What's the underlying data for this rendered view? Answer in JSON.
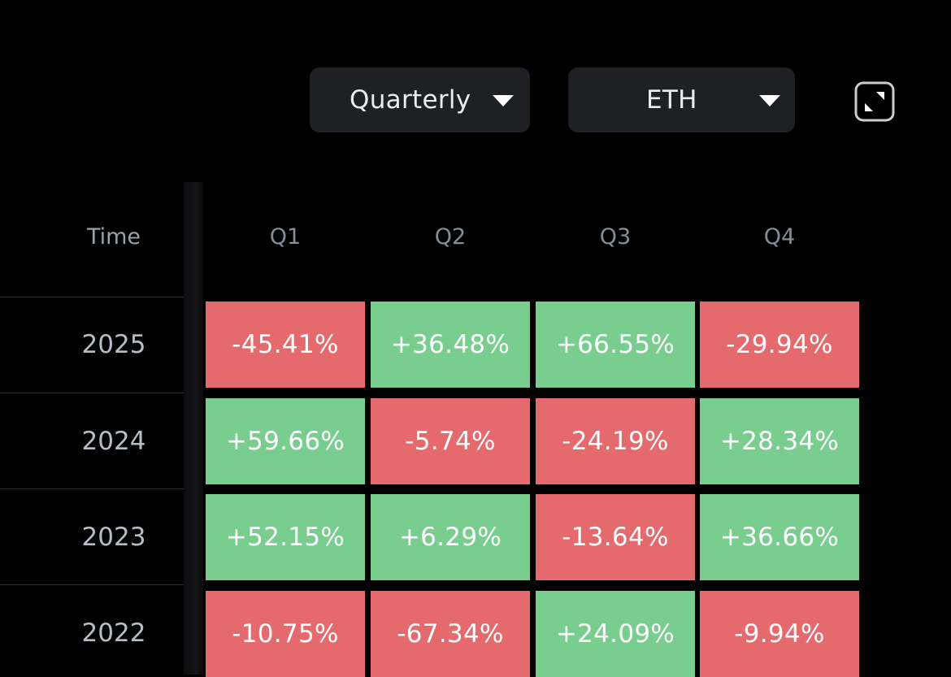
{
  "controls": {
    "period": {
      "selected": "Quarterly"
    },
    "asset": {
      "selected": "ETH"
    },
    "expand_icon": "expand-icon"
  },
  "table": {
    "time_header": "Time",
    "columns": [
      "Q1",
      "Q2",
      "Q3",
      "Q4"
    ],
    "rows": [
      {
        "year": "2025",
        "values": [
          "-45.41%",
          "+36.48%",
          "+66.55%",
          "-29.94%"
        ]
      },
      {
        "year": "2024",
        "values": [
          "+59.66%",
          "-5.74%",
          "-24.19%",
          "+28.34%"
        ]
      },
      {
        "year": "2023",
        "values": [
          "+52.15%",
          "+6.29%",
          "-13.64%",
          "+36.66%"
        ]
      },
      {
        "year": "2022",
        "values": [
          "-10.75%",
          "-67.34%",
          "+24.09%",
          "-9.94%"
        ]
      }
    ]
  },
  "colors": {
    "positive": "#79ce8f",
    "negative": "#e46a6d",
    "background": "#000000",
    "dropdown_bg": "#1e2026"
  }
}
